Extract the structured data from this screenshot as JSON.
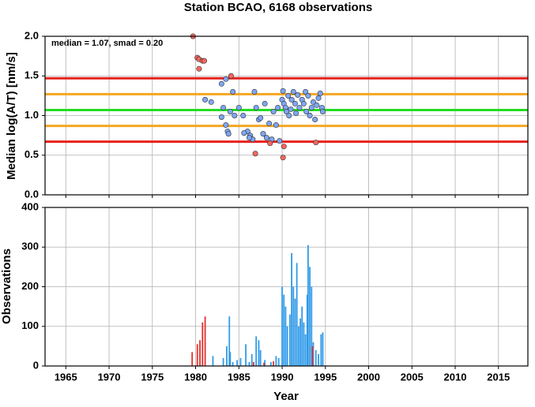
{
  "chart_data": [
    {
      "type": "scatter",
      "title": "Station BCAO, 6168 observations",
      "annotation": "median = 1.07, smad = 0.20",
      "y_label": "Median log(A/T) [nm/s]",
      "xlim": [
        1962.6,
        2018.4
      ],
      "xticks": [
        1965,
        1970,
        1975,
        1980,
        1985,
        1990,
        1995,
        2000,
        2005,
        2010,
        2015
      ],
      "ylim": [
        0,
        2
      ],
      "yticks": [
        {
          "value": 0,
          "label": "0.0"
        },
        0.5,
        {
          "value": 1,
          "label": "1.0"
        },
        1.5,
        {
          "value": 2,
          "label": "2.0"
        }
      ],
      "grid": true,
      "reference_lines": [
        {
          "value": 1.47,
          "color": "#e8201c"
        },
        {
          "value": 1.27,
          "color": "#f5a623"
        },
        {
          "value": 1.07,
          "color": "#22dd22"
        },
        {
          "value": 0.87,
          "color": "#f5a623"
        },
        {
          "value": 0.67,
          "color": "#e8201c"
        }
      ],
      "series": [
        {
          "color": "#7ea6f2",
          "x": [
            1981.1,
            1981.8,
            1983.0,
            1983.5,
            1983.2,
            1983.0,
            1983.5,
            1983.7,
            1983.8,
            1984.0,
            1984.3,
            1984.5,
            1985.0,
            1985.5,
            1986.0,
            1986.3,
            1986.6,
            1986.8,
            1987.0,
            1987.3,
            1987.5,
            1987.8,
            1988.0,
            1988.2,
            1988.5,
            1988.8,
            1989.0,
            1989.3,
            1989.5,
            1989.7,
            1990.0,
            1990.1,
            1990.2,
            1990.4,
            1990.5,
            1990.7,
            1990.8,
            1991.0,
            1991.1,
            1991.3,
            1991.5,
            1991.6,
            1991.8,
            1992.0,
            1992.3,
            1992.5,
            1992.7,
            1992.8,
            1993.0,
            1993.2,
            1993.4,
            1993.6,
            1993.8,
            1994.0,
            1994.2,
            1994.4,
            1994.6,
            1994.7,
            1985.6,
            1986.2
          ],
          "values": [
            1.2,
            1.17,
            1.4,
            1.46,
            1.1,
            0.98,
            0.88,
            0.8,
            0.77,
            1.05,
            1.3,
            1.0,
            1.1,
            1.0,
            0.8,
            0.75,
            0.7,
            1.3,
            1.1,
            0.95,
            0.97,
            0.77,
            1.15,
            0.72,
            0.9,
            0.7,
            1.05,
            0.88,
            1.1,
            0.68,
            1.2,
            1.31,
            1.15,
            1.1,
            1.05,
            1.25,
            1.0,
            1.08,
            1.2,
            1.3,
            1.15,
            1.03,
            1.26,
            1.1,
            1.2,
            1.15,
            1.3,
            1.05,
            1.25,
            1.0,
            1.1,
            1.17,
            0.95,
            1.13,
            1.22,
            1.28,
            1.1,
            1.05,
            0.78,
            0.72
          ]
        },
        {
          "color": "#f4675f",
          "x": [
            1979.7,
            1980.2,
            1980.4,
            1980.8,
            1981.0,
            1980.4,
            1984.1,
            1986.9,
            1988.6,
            1990.2,
            1990.1,
            1993.9
          ],
          "values": [
            2.0,
            1.73,
            1.71,
            1.69,
            1.69,
            1.59,
            1.5,
            0.52,
            0.65,
            0.61,
            0.47,
            0.66
          ]
        }
      ]
    },
    {
      "type": "bar",
      "x_label": "Year",
      "y_label": "Observations",
      "xlim": [
        1962.6,
        2018.4
      ],
      "xticks": [
        1965,
        1970,
        1975,
        1980,
        1985,
        1990,
        1995,
        2000,
        2005,
        2010,
        2015
      ],
      "ylim": [
        0,
        400
      ],
      "yticks": [
        0,
        100,
        200,
        300,
        400
      ],
      "grid": true,
      "series": [
        {
          "color": "#2f9ae8",
          "x": [
            1982.0,
            1983.2,
            1983.6,
            1983.9,
            1984.0,
            1984.3,
            1984.8,
            1985.2,
            1985.8,
            1986.2,
            1986.5,
            1987.0,
            1987.3,
            1987.5,
            1988.0,
            1988.7,
            1989.3,
            1989.6,
            1990.0,
            1990.2,
            1990.4,
            1990.6,
            1990.9,
            1991.1,
            1991.3,
            1991.5,
            1991.7,
            1991.9,
            1992.1,
            1992.3,
            1992.5,
            1992.7,
            1992.9,
            1993.0,
            1993.2,
            1993.4,
            1993.6,
            1993.9,
            1994.2,
            1994.5,
            1994.7
          ],
          "values": [
            25,
            20,
            50,
            125,
            35,
            10,
            15,
            20,
            55,
            10,
            30,
            75,
            65,
            40,
            15,
            10,
            25,
            20,
            200,
            180,
            150,
            100,
            130,
            285,
            200,
            170,
            260,
            100,
            120,
            150,
            110,
            80,
            180,
            305,
            250,
            200,
            60,
            40,
            30,
            80,
            85
          ]
        },
        {
          "color": "#e0312e",
          "x": [
            1979.6,
            1980.2,
            1980.5,
            1980.8,
            1981.1,
            1986.7,
            1987.9,
            1989.0,
            1993.5
          ],
          "values": [
            35,
            55,
            65,
            110,
            125,
            10,
            8,
            12,
            50
          ]
        }
      ]
    }
  ]
}
